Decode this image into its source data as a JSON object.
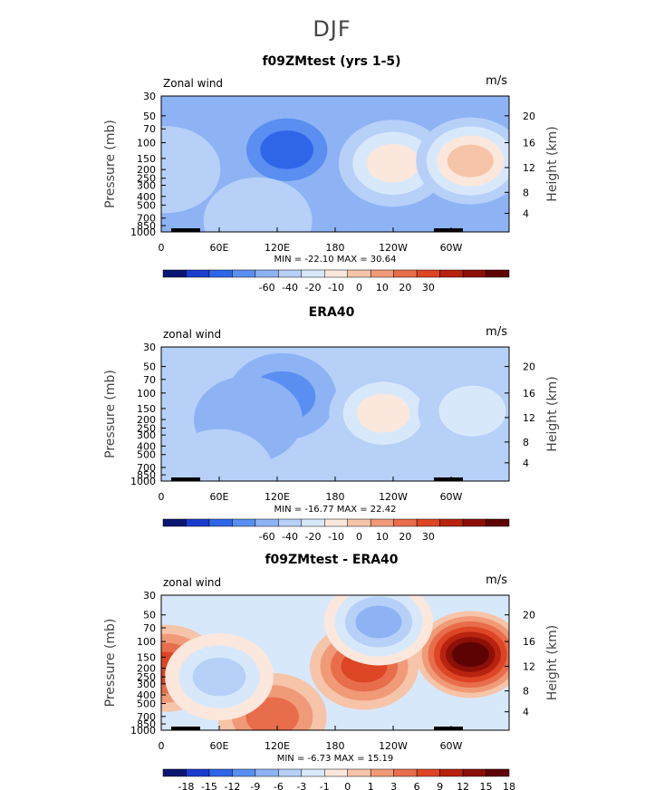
{
  "page_title": "DJF",
  "chart_data": [
    {
      "type": "heatmap",
      "title": "f09ZMtest (yrs 1-5)",
      "left_label": "Zonal wind",
      "right_label": "m/s",
      "ylabel": "Pressure (mb)",
      "y2label": "Height (km)",
      "y_ticks": [
        "30",
        "50",
        "70",
        "100",
        "150",
        "200",
        "250",
        "300",
        "400",
        "500",
        "700",
        "850",
        "1000"
      ],
      "y2_ticks": [
        "20",
        "16",
        "12",
        "8",
        "4"
      ],
      "x_ticks": [
        "0",
        "60E",
        "120E",
        "180",
        "120W",
        "60W"
      ],
      "stats": "MIN = -22.10   MAX = 30.64",
      "colorbar_labels": [
        "-60",
        "-40",
        "-20",
        "-10",
        "0",
        "10",
        "20",
        "30"
      ],
      "background_level": -3,
      "blobs": [
        {
          "lon": 130,
          "p": 120,
          "value": -20
        },
        {
          "lon": 30,
          "p": 180,
          "value": -6
        },
        {
          "lon": 240,
          "p": 170,
          "value": 22
        },
        {
          "lon": 320,
          "p": 160,
          "value": 30
        },
        {
          "lon": 5,
          "p": 200,
          "value": 8
        },
        {
          "lon": 100,
          "p": 750,
          "value": 4
        }
      ]
    },
    {
      "type": "heatmap",
      "title": "ERA40",
      "left_label": "zonal wind",
      "right_label": "m/s",
      "ylabel": "Pressure (mb)",
      "y2label": "Height (km)",
      "y_ticks": [
        "30",
        "50",
        "70",
        "100",
        "150",
        "200",
        "250",
        "300",
        "400",
        "500",
        "700",
        "850",
        "1000"
      ],
      "y2_ticks": [
        "20",
        "16",
        "12",
        "8",
        "4"
      ],
      "x_ticks": [
        "0",
        "60E",
        "120E",
        "180",
        "120W",
        "60W"
      ],
      "stats": "MIN = -16.77   MAX = 22.42",
      "colorbar_labels": [
        "-60",
        "-40",
        "-20",
        "-10",
        "0",
        "10",
        "20",
        "30"
      ],
      "background_level": 2,
      "blobs": [
        {
          "lon": 125,
          "p": 110,
          "value": -16
        },
        {
          "lon": 90,
          "p": 200,
          "value": -6
        },
        {
          "lon": 230,
          "p": 170,
          "value": 22
        },
        {
          "lon": 322,
          "p": 160,
          "value": 18
        },
        {
          "lon": 60,
          "p": 800,
          "value": 4
        }
      ]
    },
    {
      "type": "heatmap",
      "title": "f09ZMtest - ERA40",
      "left_label": "zonal wind",
      "right_label": "m/s",
      "ylabel": "Pressure (mb)",
      "y2label": "Height (km)",
      "y_ticks": [
        "30",
        "50",
        "70",
        "100",
        "150",
        "200",
        "250",
        "300",
        "400",
        "500",
        "700",
        "850",
        "1000"
      ],
      "y2_ticks": [
        "20",
        "16",
        "12",
        "8",
        "4"
      ],
      "x_ticks": [
        "0",
        "60E",
        "120E",
        "180",
        "120W",
        "60W"
      ],
      "stats": "MIN =  -6.73   MAX =  15.19",
      "colorbar_labels": [
        "-18",
        "-15",
        "-12",
        "-9",
        "-6",
        "-3",
        "-1",
        "0",
        "1",
        "3",
        "6",
        "9",
        "12",
        "15",
        "18"
      ],
      "background_level": -2,
      "blobs": [
        {
          "lon": 210,
          "p": 190,
          "value": 8
        },
        {
          "lon": 320,
          "p": 140,
          "value": 15
        },
        {
          "lon": 115,
          "p": 700,
          "value": 3
        },
        {
          "lon": 5,
          "p": 200,
          "value": 6
        },
        {
          "lon": 225,
          "p": 60,
          "value": -6
        },
        {
          "lon": 60,
          "p": 250,
          "value": -4
        }
      ]
    }
  ],
  "colors": {
    "colorbar": [
      "#0a1770",
      "#1a3ccf",
      "#2f66e8",
      "#5a8ef0",
      "#8db3f5",
      "#b6d0f8",
      "#d8e8fb",
      "#fbe7dc",
      "#f6c4a8",
      "#f09a77",
      "#e86d4b",
      "#dd4524",
      "#b8230f",
      "#8c1008",
      "#5e0303"
    ],
    "terrain": "#000000"
  }
}
